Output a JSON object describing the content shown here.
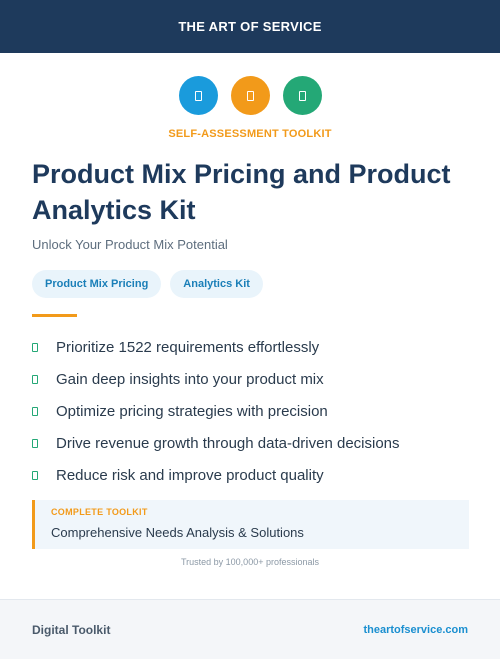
{
  "header": {
    "brand": "THE ART OF SERVICE"
  },
  "icons": [
    {
      "name": "document-icon",
      "color": "#1a9bdc"
    },
    {
      "name": "clipboard-icon",
      "color": "#f29a1a"
    },
    {
      "name": "notebook-icon",
      "color": "#24a876"
    }
  ],
  "kicker": "SELF-ASSESSMENT TOOLKIT",
  "title": "Product Mix Pricing and Product Analytics Kit",
  "subtitle": "Unlock Your Product Mix Potential",
  "tags": [
    "Product Mix Pricing",
    "Analytics Kit"
  ],
  "features": [
    "Prioritize 1522 requirements effortlessly",
    "Gain deep insights into your product mix",
    "Optimize pricing strategies with precision",
    "Drive revenue growth through data-driven decisions",
    "Reduce risk and improve product quality"
  ],
  "callout": {
    "label": "COMPLETE TOOLKIT",
    "text": "Comprehensive Needs Analysis & Solutions"
  },
  "trusted": "Trusted by 100,000+ professionals",
  "footer": {
    "left": "Digital Toolkit",
    "right": "theartofservice.com"
  },
  "colors": {
    "navy": "#1e3a5c",
    "accent_orange": "#f29a1a",
    "accent_blue": "#1a9bdc",
    "accent_green": "#24a876"
  }
}
